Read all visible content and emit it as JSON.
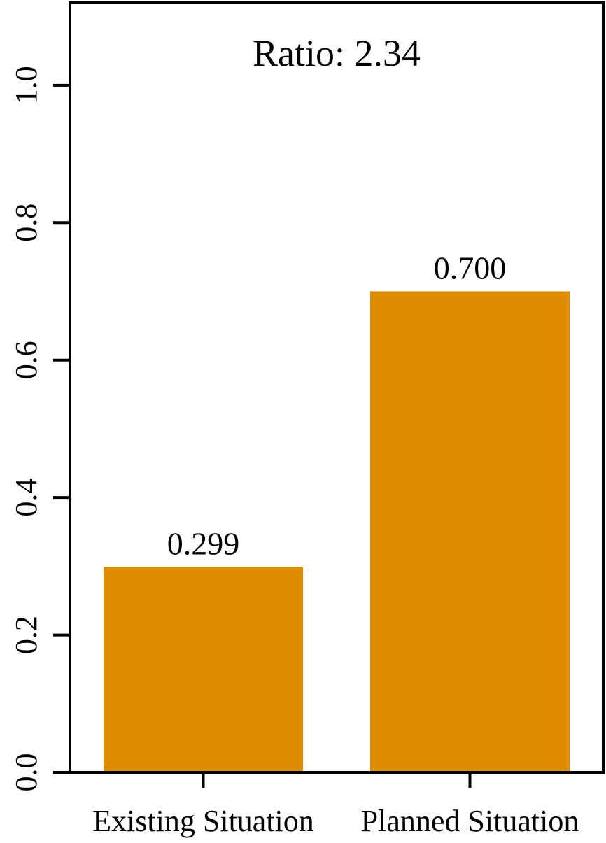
{
  "chart_data": {
    "type": "bar",
    "categories": [
      "Existing Situation",
      "Planned Situation"
    ],
    "values": [
      0.299,
      0.7
    ],
    "value_labels": [
      "0.299",
      "0.700"
    ],
    "annotation": "Ratio: 2.34",
    "title": "",
    "xlabel": "",
    "ylabel": "",
    "ylim": [
      0,
      1.12
    ],
    "yticks": [
      0.0,
      0.2,
      0.4,
      0.6,
      0.8,
      1.0
    ],
    "ytick_labels": [
      "0.0",
      "0.2",
      "0.4",
      "0.6",
      "0.8",
      "1.0"
    ],
    "grid": false,
    "legend": "none",
    "bar_color": "#E08C00"
  }
}
